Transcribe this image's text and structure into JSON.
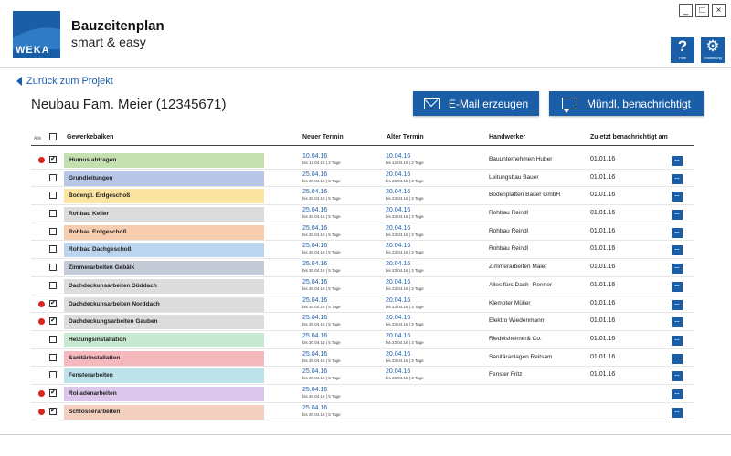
{
  "app": {
    "title": "Bauzeitenplan",
    "subtitle": "smart & easy",
    "logo_text": "WEKA",
    "brand_color": "#1a5ea8"
  },
  "window_controls": {
    "minimize": "_",
    "maximize": "□",
    "close": "×"
  },
  "toolbar": {
    "help": {
      "glyph": "?",
      "caption": "Hilfe"
    },
    "settings": {
      "glyph": "⚙",
      "caption": "Einstellung"
    }
  },
  "back_label": "Zurück zum Projekt",
  "project_title": "Neubau Fam. Meier (12345671)",
  "actions": {
    "email": "E-Mail erzeugen",
    "notify": "Mündl. benachrichtigt"
  },
  "table": {
    "columns": {
      "all": "Alle",
      "trade": "Gewerkebalken",
      "new_date": "Neuer Termin",
      "old_date": "Alter Termin",
      "worker": "Handwerker",
      "notified": "Zuletzt benachrichtigt am"
    },
    "more_label": "...",
    "rows": [
      {
        "marked": true,
        "checked": true,
        "trade": "Humus abtragen",
        "color": "#c4dfb0",
        "new_date": "10.04.16",
        "new_sub": "bis 12.04.16 | 2 Tage",
        "old_date": "10.04.16",
        "old_sub": "bis 12.04.16 | 2 Tage",
        "worker": "Bauunternehmen Huber",
        "notified": "01.01.16"
      },
      {
        "marked": false,
        "checked": false,
        "trade": "Grundleitungen",
        "color": "#b7c6e6",
        "new_date": "25.04.16",
        "new_sub": "bis 30.04.16 | 5 Tage",
        "old_date": "20.04.16",
        "old_sub": "bis 23.04.16 | 3 Tage",
        "worker": "Leitungsbau Bauer",
        "notified": "01.01.16"
      },
      {
        "marked": false,
        "checked": false,
        "trade": "Bodenpl. Erdgeschoß",
        "color": "#fbe3a0",
        "new_date": "25.04.16",
        "new_sub": "bis 30.04.16 | 5 Tage",
        "old_date": "20.04.16",
        "old_sub": "bis 23.04.16 | 3 Tage",
        "worker": "Bodenplatten Bauer GmbH",
        "notified": "01.01.16"
      },
      {
        "marked": false,
        "checked": false,
        "trade": "Rohbau Keller",
        "color": "#dcdcdc",
        "new_date": "25.04.16",
        "new_sub": "bis 30.04.16 | 5 Tage",
        "old_date": "20.04.16",
        "old_sub": "bis 23.04.16 | 3 Tage",
        "worker": "Rohbau Reindl",
        "notified": "01.01.16"
      },
      {
        "marked": false,
        "checked": false,
        "trade": "Rohbau Erdgeschoß",
        "color": "#f7cdb0",
        "new_date": "25.04.16",
        "new_sub": "bis 30.04.16 | 5 Tage",
        "old_date": "20.04.16",
        "old_sub": "bis 23.04.16 | 3 Tage",
        "worker": "Rohbau Reindl",
        "notified": "01.01.16"
      },
      {
        "marked": false,
        "checked": false,
        "trade": "Rohbau Dachgeschoß",
        "color": "#bcd5ee",
        "new_date": "25.04.16",
        "new_sub": "bis 30.04.16 | 5 Tage",
        "old_date": "20.04.16",
        "old_sub": "bis 23.04.16 | 3 Tage",
        "worker": "Rohbau Reindl",
        "notified": "01.01.16"
      },
      {
        "marked": false,
        "checked": false,
        "trade": "Zimmerarbeiten Gebälk",
        "color": "#c5cbd6",
        "new_date": "25.04.16",
        "new_sub": "bis 30.04.16 | 5 Tage",
        "old_date": "20.04.16",
        "old_sub": "bis 23.04.16 | 3 Tage",
        "worker": "Zimmerarbeiten Maier",
        "notified": "01.01.16"
      },
      {
        "marked": false,
        "checked": false,
        "trade": "Dachdeckunsarbeiten Süddach",
        "color": "#dcdcdc",
        "new_date": "25.04.16",
        "new_sub": "bis 30.04.16 | 5 Tage",
        "old_date": "20.04.16",
        "old_sub": "bis 23.04.16 | 3 Tage",
        "worker": "Alles fürs Dach- Renner",
        "notified": "01.01.16"
      },
      {
        "marked": true,
        "checked": true,
        "trade": "Dachdeckunsarbeiten Norddach",
        "color": "#dcdcdc",
        "new_date": "25.04.16",
        "new_sub": "bis 30.04.16 | 5 Tage",
        "old_date": "20.04.16",
        "old_sub": "bis 23.04.16 | 3 Tage",
        "worker": "Klempter Müller",
        "notified": "01.01.16"
      },
      {
        "marked": true,
        "checked": true,
        "trade": "Dachdeckungsarbeiten Gauben",
        "color": "#dcdcdc",
        "new_date": "25.04.16",
        "new_sub": "bis 30.04.16 | 5 Tage",
        "old_date": "20.04.16",
        "old_sub": "bis 23.04.16 | 3 Tage",
        "worker": "Elektro Wiedenmann",
        "notified": "01.01.16"
      },
      {
        "marked": false,
        "checked": false,
        "trade": "Heizungsinstallation",
        "color": "#c8e9d1",
        "new_date": "25.04.16",
        "new_sub": "bis 30.04.16 | 5 Tage",
        "old_date": "20.04.16",
        "old_sub": "bis 23.04.16 | 3 Tage",
        "worker": "Riedelsheimer& Co.",
        "notified": "01.01.16"
      },
      {
        "marked": false,
        "checked": false,
        "trade": "Sanitärinstallation",
        "color": "#f5b8bd",
        "new_date": "25.04.16",
        "new_sub": "bis 30.04.16 | 5 Tage",
        "old_date": "20.04.16",
        "old_sub": "bis 23.04.16 | 3 Tage",
        "worker": "Sanitäranlagen Reitsam",
        "notified": "01.01.16"
      },
      {
        "marked": false,
        "checked": false,
        "trade": "Fensterarbeiten",
        "color": "#bde3ea",
        "new_date": "25.04.16",
        "new_sub": "bis 30.04.16 | 5 Tage",
        "old_date": "20.04.16",
        "old_sub": "bis 23.04.16 | 3 Tage",
        "worker": "Fenster Fritz",
        "notified": "01.01.16"
      },
      {
        "marked": true,
        "checked": true,
        "trade": "Rolladenarbeiten",
        "color": "#dcc5ea",
        "new_date": "25.04.16",
        "new_sub": "bis 30.04.16 | 5 Tage",
        "old_date": "",
        "old_sub": "",
        "worker": "",
        "notified": ""
      },
      {
        "marked": true,
        "checked": true,
        "trade": "Schlosserarbeiten",
        "color": "#f3cfbf",
        "new_date": "25.04.16",
        "new_sub": "bis 30.04.16 | 5 Tage",
        "old_date": "",
        "old_sub": "",
        "worker": "",
        "notified": ""
      }
    ]
  }
}
